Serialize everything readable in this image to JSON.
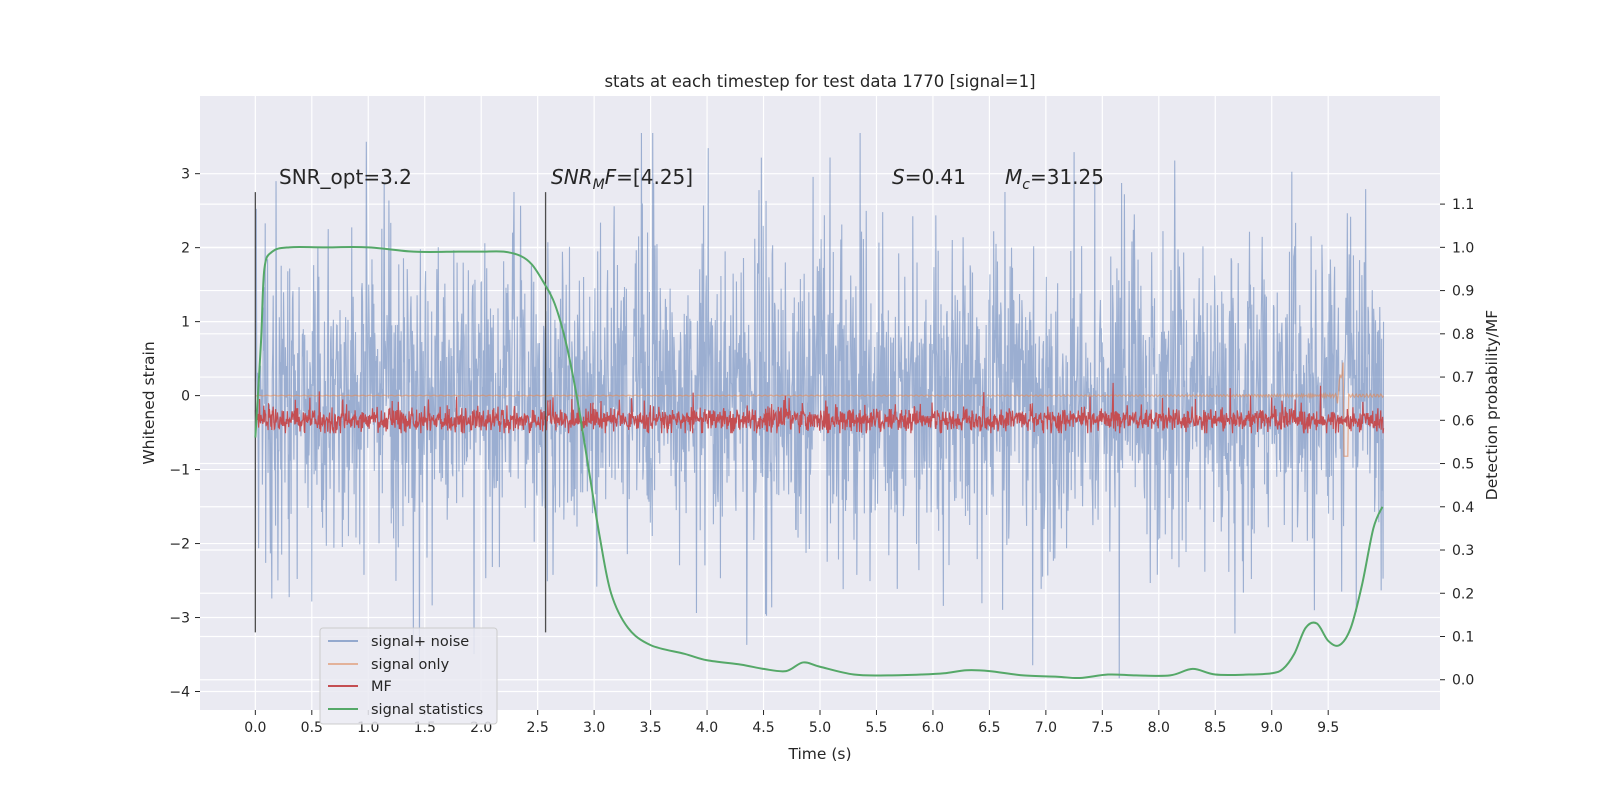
{
  "chart_data": {
    "type": "line",
    "title": "stats at each timestep for test data 1770 [signal=1]",
    "xlabel": "Time (s)",
    "ylabel": "Whitened strain",
    "y2label": "Detection probability/MF",
    "xlim": [
      -0.49,
      10.49
    ],
    "ylim": [
      -4.25,
      4.05
    ],
    "y2lim": [
      -0.07,
      1.35
    ],
    "xticks": [
      0.0,
      0.5,
      1.0,
      1.5,
      2.0,
      2.5,
      3.0,
      3.5,
      4.0,
      4.5,
      5.0,
      5.5,
      6.0,
      6.5,
      7.0,
      7.5,
      8.0,
      8.5,
      9.0,
      9.5
    ],
    "xtick_labels": [
      "0.0",
      "0.5",
      "1.0",
      "1.5",
      "2.0",
      "2.5",
      "3.0",
      "3.5",
      "4.0",
      "4.5",
      "5.0",
      "5.5",
      "6.0",
      "6.5",
      "7.0",
      "7.5",
      "8.0",
      "8.5",
      "9.0",
      "9.5"
    ],
    "yticks": [
      3,
      2,
      1,
      0,
      -1,
      -2,
      -3,
      -4
    ],
    "ytick_labels": [
      "3",
      "2",
      "1",
      "0",
      "−1",
      "−2",
      "−3",
      "−4"
    ],
    "y2ticks": [
      1.1,
      1.0,
      0.9,
      0.8,
      0.7,
      0.6,
      0.5,
      0.4,
      0.3,
      0.2,
      0.1,
      0.0
    ],
    "y2tick_labels": [
      "1.1",
      "1.0",
      "0.9",
      "0.8",
      "0.7",
      "0.6",
      "0.5",
      "0.4",
      "0.3",
      "0.2",
      "0.1",
      "0.0"
    ],
    "grid": true,
    "legend_position": "lower-left",
    "series": [
      {
        "name": "signal+ noise",
        "color": "#4c72b0",
        "axis": "left",
        "kind": "noise",
        "t_range": [
          0.0,
          9.99
        ],
        "typical_amplitude": 1.0,
        "peak_range": [
          -4.0,
          3.55
        ]
      },
      {
        "name": "signal only",
        "color": "#dd8452",
        "axis": "left",
        "kind": "chirp",
        "t_range": [
          0.0,
          9.99
        ],
        "merger_time": 9.66,
        "peak_value": -0.82
      },
      {
        "name": "MF",
        "color": "#c44e52",
        "axis": "right",
        "kind": "noise",
        "t_range": [
          0.0,
          9.99
        ],
        "baseline": 0.6,
        "peak_range": [
          0.57,
          0.69
        ]
      },
      {
        "name": "signal statistics",
        "color": "#55a868",
        "axis": "right",
        "kind": "curve",
        "x": [
          0.0,
          0.05,
          0.08,
          0.15,
          0.3,
          0.6,
          1.0,
          1.4,
          1.8,
          2.0,
          2.2,
          2.35,
          2.45,
          2.55,
          2.65,
          2.75,
          2.85,
          2.95,
          3.05,
          3.15,
          3.3,
          3.5,
          3.8,
          4.0,
          4.3,
          4.5,
          4.7,
          4.85,
          5.0,
          5.3,
          5.6,
          5.9,
          6.1,
          6.3,
          6.5,
          6.8,
          7.1,
          7.3,
          7.55,
          7.8,
          8.1,
          8.3,
          8.5,
          8.8,
          9.0,
          9.1,
          9.2,
          9.3,
          9.4,
          9.5,
          9.6,
          9.7,
          9.8,
          9.9,
          9.98
        ],
        "y": [
          0.56,
          0.78,
          0.95,
          0.99,
          1.0,
          1.0,
          1.0,
          0.99,
          0.99,
          0.99,
          0.99,
          0.98,
          0.96,
          0.92,
          0.87,
          0.78,
          0.65,
          0.49,
          0.33,
          0.2,
          0.12,
          0.08,
          0.06,
          0.045,
          0.035,
          0.025,
          0.02,
          0.04,
          0.03,
          0.012,
          0.01,
          0.012,
          0.015,
          0.022,
          0.02,
          0.01,
          0.007,
          0.004,
          0.012,
          0.01,
          0.01,
          0.025,
          0.012,
          0.012,
          0.015,
          0.025,
          0.06,
          0.12,
          0.13,
          0.09,
          0.08,
          0.12,
          0.22,
          0.35,
          0.4
        ]
      }
    ],
    "vlines": [
      0.0,
      2.57
    ],
    "annotations": [
      {
        "id": "snr-opt",
        "text": "SNR_opt=3.2"
      },
      {
        "id": "snr-mf",
        "text_italic": "SNR",
        "sub": "M",
        "text_italic2": "F",
        "text": "=[4.25]"
      },
      {
        "id": "s-val",
        "text_italic": "S",
        "text": "=0.41"
      },
      {
        "id": "mc-val",
        "text_italic": "M",
        "sub": "c",
        "text": "=31.25"
      }
    ]
  }
}
